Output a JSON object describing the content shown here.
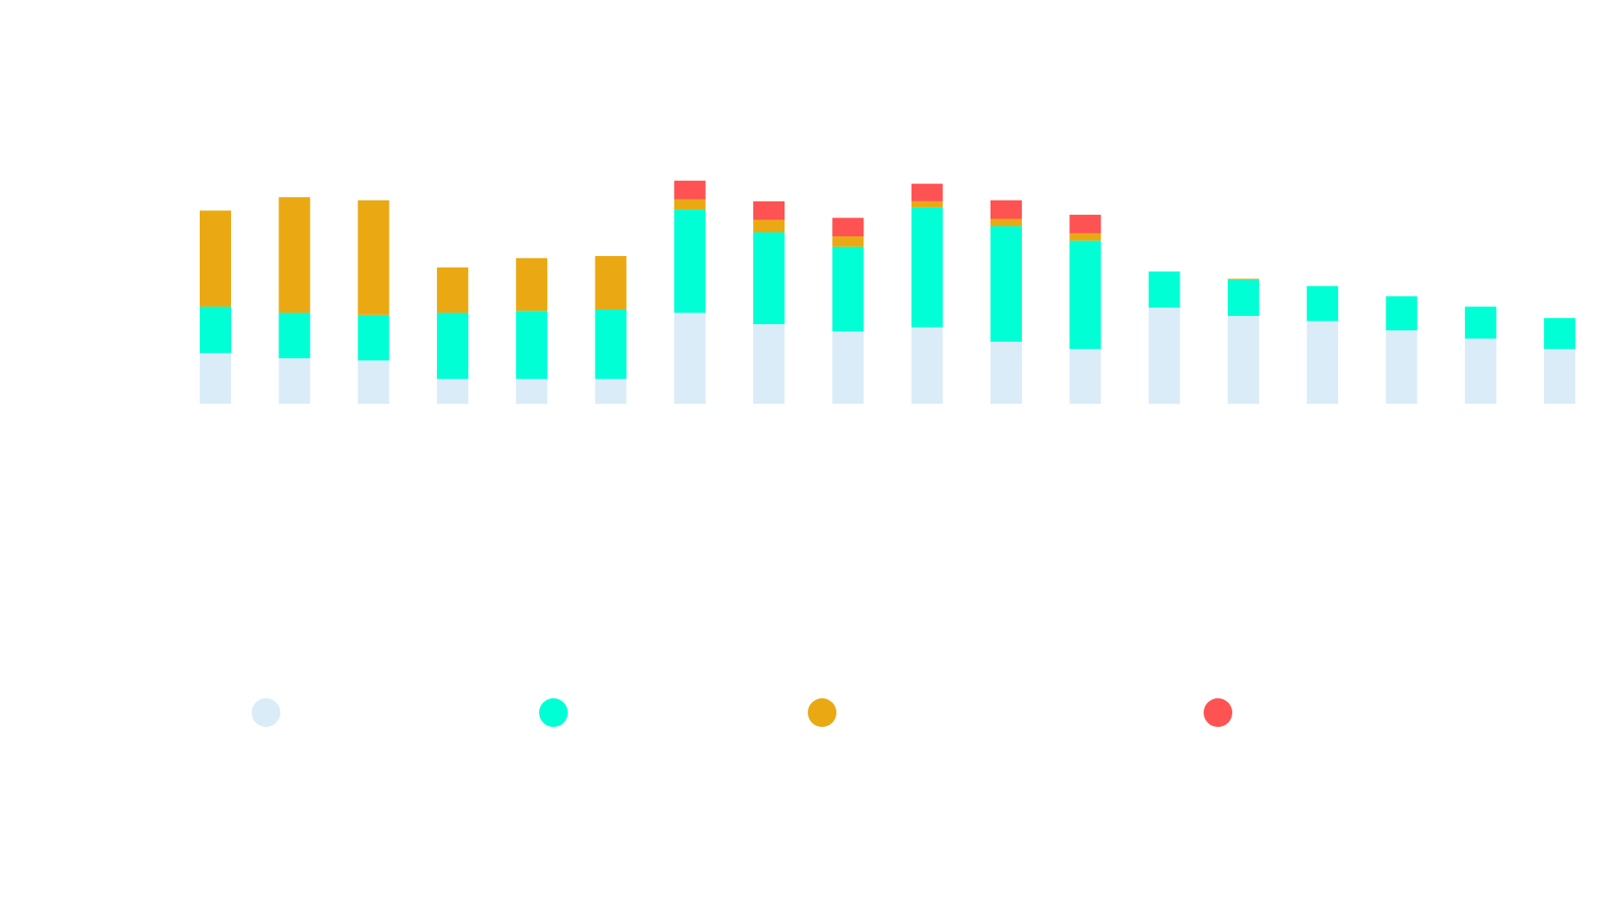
{
  "chart_data": {
    "type": "bar",
    "stacked": true,
    "title": "",
    "xlabel": "",
    "ylabel": "",
    "categories": [
      "",
      "",
      "",
      "",
      "",
      "",
      "",
      "",
      "",
      "",
      "",
      "",
      "",
      "",
      "",
      "",
      "",
      ""
    ],
    "ylim": [
      0,
      220
    ],
    "grid": false,
    "legend_position": "bottom",
    "series": [
      {
        "color": "#d9ecf8",
        "values": [
          49,
          44,
          42,
          24,
          24,
          24,
          88,
          77,
          70,
          74,
          60,
          53,
          93,
          85,
          80,
          71,
          63,
          53
        ]
      },
      {
        "color": "#00ffd5",
        "values": [
          45,
          44,
          44,
          64,
          66,
          67,
          100,
          89,
          82,
          116,
          112,
          105,
          35,
          35,
          34,
          33,
          31,
          30
        ]
      },
      {
        "color": "#eaa913",
        "values": [
          93,
          112,
          111,
          44,
          51,
          52,
          10,
          12,
          10,
          6,
          7,
          7,
          0,
          1,
          0,
          0,
          0,
          0
        ]
      },
      {
        "color": "#ff5252",
        "values": [
          0,
          0,
          0,
          0,
          0,
          0,
          18,
          18,
          18,
          17,
          18,
          18,
          0,
          0,
          0,
          0,
          0,
          0
        ]
      }
    ]
  }
}
